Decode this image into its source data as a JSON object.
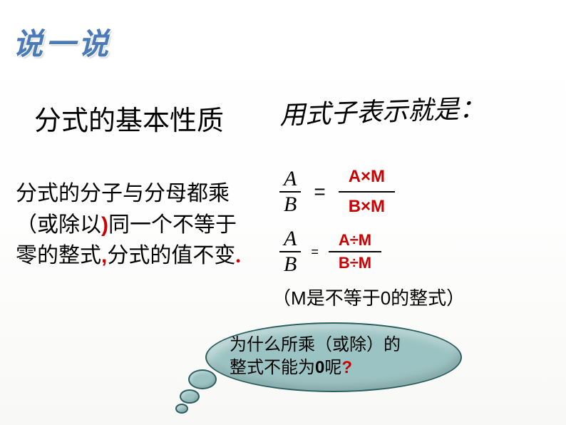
{
  "title": "说一说",
  "section_title": "分式的基本性质",
  "expr_intro": "用式子表示就是：",
  "body": {
    "line1": "分式的分子与分母都乘",
    "line2_a": "（或除以",
    "line2_paren": ")",
    "line2_b": "同一个不等于",
    "line3_a": "零的整式",
    "line3_comma": ",",
    "line3_b": "分式的值不变",
    "line3_dot": "."
  },
  "equations": {
    "eq1": {
      "left_num": "A",
      "left_den": "B",
      "right_num": "A×M",
      "right_den": "B×M",
      "equals": "="
    },
    "eq2": {
      "left_num": "A",
      "left_den": "B",
      "right_num": "A÷M",
      "right_den": "B÷M",
      "equals": "="
    }
  },
  "note": {
    "open": "（",
    "m": "M",
    "mid": "是不等于",
    "zero": "0",
    "end": "的整式）"
  },
  "cloud": {
    "line1": "为什么所乘（或除）的",
    "line2_a": "整式不能为",
    "line2_zero": "0",
    "line2_b": "呢",
    "line2_q": "?"
  },
  "colors": {
    "title_color": "#4a7ab8",
    "accent_red": "#cc0000",
    "cloud_fill": "#9cc3c3",
    "cloud_border": "#2a5f5f",
    "text": "#000000",
    "bg_top": "#ffffff",
    "bg_bottom": "#f8f8f6"
  },
  "fonts": {
    "title_size": 42,
    "section_size": 38,
    "intro_size": 36,
    "body_size": 30,
    "note_size": 26,
    "cloud_size": 24
  }
}
